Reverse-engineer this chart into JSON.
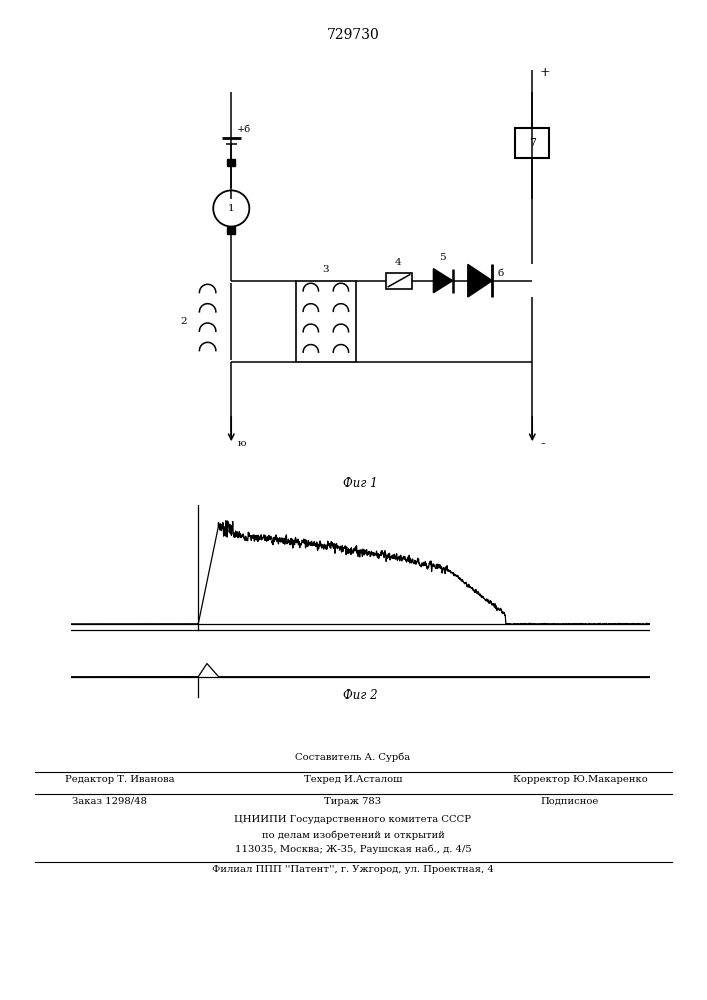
{
  "title": "729730",
  "title_fontsize": 10,
  "fig1_label": "Фиг 1",
  "fig2_label": "Фиг 2",
  "bg_color": "#ffffff",
  "line_color": "#000000",
  "footer_sestavitel": "Составитель А. Сурба",
  "footer_editor": "Редактор Т. Иванова",
  "footer_techred": "Техред И.Асталош",
  "footer_corrector": "Корректор Ю.Макаренко",
  "footer_order": "Заказ 1298/48",
  "footer_tirazh": "Тираж 783",
  "footer_podpisnoe": "Подписное",
  "footer_cniip1": "ЦНИИПИ Государственного комитета СССР",
  "footer_cniip2": "по делам изобретений и открытий",
  "footer_cniip3": "113035, Москва; Ж-35, Раушская наб., д. 4/5",
  "footer_filial": "Филиал ППП ''Патент'', г. Ужгород, ул. Проектная, 4"
}
